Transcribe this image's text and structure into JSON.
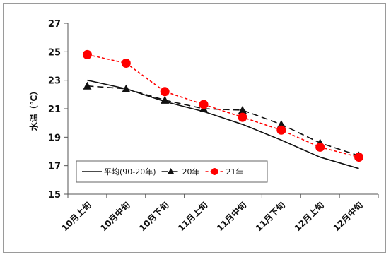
{
  "chart_data": {
    "type": "line",
    "title": "",
    "xlabel": "",
    "ylabel": "水温（℃）",
    "categories": [
      "10月上旬",
      "10月中旬",
      "10月下旬",
      "11月上旬",
      "11月中旬",
      "11月下旬",
      "12月上旬",
      "12月中旬"
    ],
    "ylim": [
      15,
      27
    ],
    "yticks": [
      15,
      17,
      19,
      21,
      23,
      25,
      27
    ],
    "grid": false,
    "legend_position": "bottom-left",
    "series": [
      {
        "name": "平均(90-20年)",
        "style": "solid",
        "color": "#111111",
        "marker": "none",
        "values": [
          23.0,
          22.4,
          21.5,
          20.8,
          19.9,
          18.8,
          17.6,
          16.8
        ]
      },
      {
        "name": "20年",
        "style": "dashed",
        "color": "#111111",
        "marker": "triangle",
        "values": [
          22.6,
          22.4,
          21.6,
          21.0,
          20.9,
          19.9,
          18.6,
          17.7
        ]
      },
      {
        "name": "21年",
        "style": "dotted",
        "color": "#ff0000",
        "marker": "circle",
        "values": [
          24.8,
          24.2,
          22.2,
          21.3,
          20.4,
          19.5,
          18.3,
          17.6
        ]
      }
    ]
  }
}
